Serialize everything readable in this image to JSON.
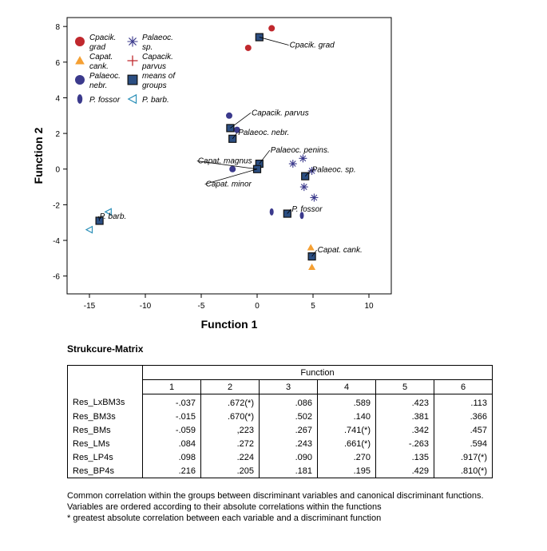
{
  "chart_data": {
    "type": "scatter",
    "xlabel": "Function 1",
    "ylabel": "Function 2",
    "xlim": [
      -17,
      12
    ],
    "ylim": [
      -7,
      8.5
    ],
    "xticks": [
      -15,
      -10,
      -5,
      0,
      5,
      10
    ],
    "yticks": [
      -6,
      -4,
      -2,
      0,
      2,
      4,
      6,
      8
    ],
    "legend": "top-left",
    "series": [
      {
        "name": "Cpacik. grad",
        "marker": "circle",
        "color": "#c0282d",
        "points": [
          [
            1.3,
            7.9
          ],
          [
            -0.8,
            6.8
          ]
        ]
      },
      {
        "name": "Capat. cank.",
        "marker": "triangle-up",
        "color": "#f5a033",
        "points": [
          [
            4.8,
            -4.4
          ],
          [
            4.9,
            -5.5
          ]
        ]
      },
      {
        "name": "Palaeoc. nebr.",
        "marker": "circle",
        "color": "#3b3a8c",
        "points": [
          [
            -2.5,
            3.0
          ],
          [
            -1.8,
            2.2
          ],
          [
            -2.2,
            0.0
          ]
        ]
      },
      {
        "name": "P. fossor",
        "marker": "ellipse",
        "color": "#3b3a8c",
        "points": [
          [
            1.3,
            -2.4
          ],
          [
            4.0,
            -2.6
          ]
        ]
      },
      {
        "name": "P. barb.",
        "marker": "triangle-left",
        "color": "#2a8fb8",
        "points": [
          [
            -13.3,
            -2.4
          ],
          [
            -15.0,
            -3.4
          ]
        ]
      },
      {
        "name": "Palaeoc. sp.",
        "marker": "star",
        "color": "#3b3a8c",
        "points": [
          [
            3.2,
            0.3
          ],
          [
            4.1,
            0.6
          ],
          [
            4.9,
            -0.1
          ],
          [
            4.2,
            -1.0
          ],
          [
            5.1,
            -1.6
          ]
        ]
      },
      {
        "name": "Capacik. parvus",
        "marker": "plus",
        "color": "#c0282d",
        "points": []
      },
      {
        "name": "means of groups",
        "marker": "square",
        "color": "#2b4e82",
        "points": [
          [
            0.2,
            7.4
          ],
          [
            4.9,
            -4.9
          ],
          [
            -2.4,
            2.3
          ],
          [
            -2.2,
            1.7
          ],
          [
            2.7,
            -2.5
          ],
          [
            -14.1,
            -2.9
          ],
          [
            4.3,
            -0.4
          ],
          [
            0.2,
            0.3
          ],
          [
            0.0,
            0.0
          ]
        ]
      }
    ],
    "annotations": [
      {
        "text": "Cpacik. grad",
        "x": 2.9,
        "y": 7.0
      },
      {
        "text": "Capacik. parvus",
        "x": -0.5,
        "y": 3.2
      },
      {
        "text": "Palaeoc. nebr.",
        "x": -1.7,
        "y": 2.1
      },
      {
        "text": "Palaeoc. penins.",
        "x": 1.2,
        "y": 1.1
      },
      {
        "text": "Capat. magnus",
        "x": -5.3,
        "y": 0.5
      },
      {
        "text": "Palaeoc. sp.",
        "x": 4.9,
        "y": 0.0
      },
      {
        "text": "Capat. minor",
        "x": -4.6,
        "y": -0.8
      },
      {
        "text": "P. fossor",
        "x": 3.1,
        "y": -2.2
      },
      {
        "text": "P. barb.",
        "x": -14.1,
        "y": -2.6
      },
      {
        "text": "Capat. cank.",
        "x": 5.4,
        "y": -4.5
      }
    ]
  },
  "legend_items": [
    {
      "label": "Cpacik.\ngrad",
      "marker": "circle",
      "color": "#c0282d"
    },
    {
      "label": "Palaeoc.\nsp.",
      "marker": "star",
      "color": "#3b3a8c"
    },
    {
      "label": "Capat.\ncank.",
      "marker": "triangle-up",
      "color": "#f5a033"
    },
    {
      "label": "Capacik.\nparvus",
      "marker": "plus",
      "color": "#c0282d"
    },
    {
      "label": "Palaeoc.\nnebr.",
      "marker": "circle",
      "color": "#3b3a8c"
    },
    {
      "label": "means of\ngroups",
      "marker": "square",
      "color": "#2b4e82"
    },
    {
      "label": "P. fossor",
      "marker": "ellipse",
      "color": "#3b3a8c"
    },
    {
      "label": "P. barb.",
      "marker": "triangle-left",
      "color": "#2a8fb8"
    }
  ],
  "matrix": {
    "title": "Strukcure-Matrix",
    "group_header": "Function",
    "columns": [
      "1",
      "2",
      "3",
      "4",
      "5",
      "6"
    ],
    "rows": [
      {
        "name": "Res_LxBM3s",
        "values": [
          "-.037",
          ".672(*)",
          ".086",
          ".589",
          ".423",
          ".113"
        ]
      },
      {
        "name": "Res_BM3s",
        "values": [
          "-.015",
          ".670(*)",
          ".502",
          ".140",
          ".381",
          ".366"
        ]
      },
      {
        "name": "Res_BMs",
        "values": [
          "-.059",
          ",223",
          ".267",
          ".741(*)",
          ".342",
          ".457"
        ]
      },
      {
        "name": "Res_LMs",
        "values": [
          ".084",
          ".272",
          ".243",
          ".661(*)",
          "-.263",
          ".594"
        ]
      },
      {
        "name": "Res_LP4s",
        "values": [
          ".098",
          ".224",
          ".090",
          ".270",
          ".135",
          ".917(*)"
        ]
      },
      {
        "name": "Res_BP4s",
        "values": [
          ".216",
          ".205",
          ".181",
          ".195",
          ".429",
          ".810(*)"
        ]
      }
    ],
    "notes": [
      "Common correlation within the groups between discriminant variables and canonical discriminant functions.",
      "Variables are ordered according to their absolute correlations within the functions",
      "*  greatest absolute correlation between each variable and a discriminant function"
    ]
  }
}
